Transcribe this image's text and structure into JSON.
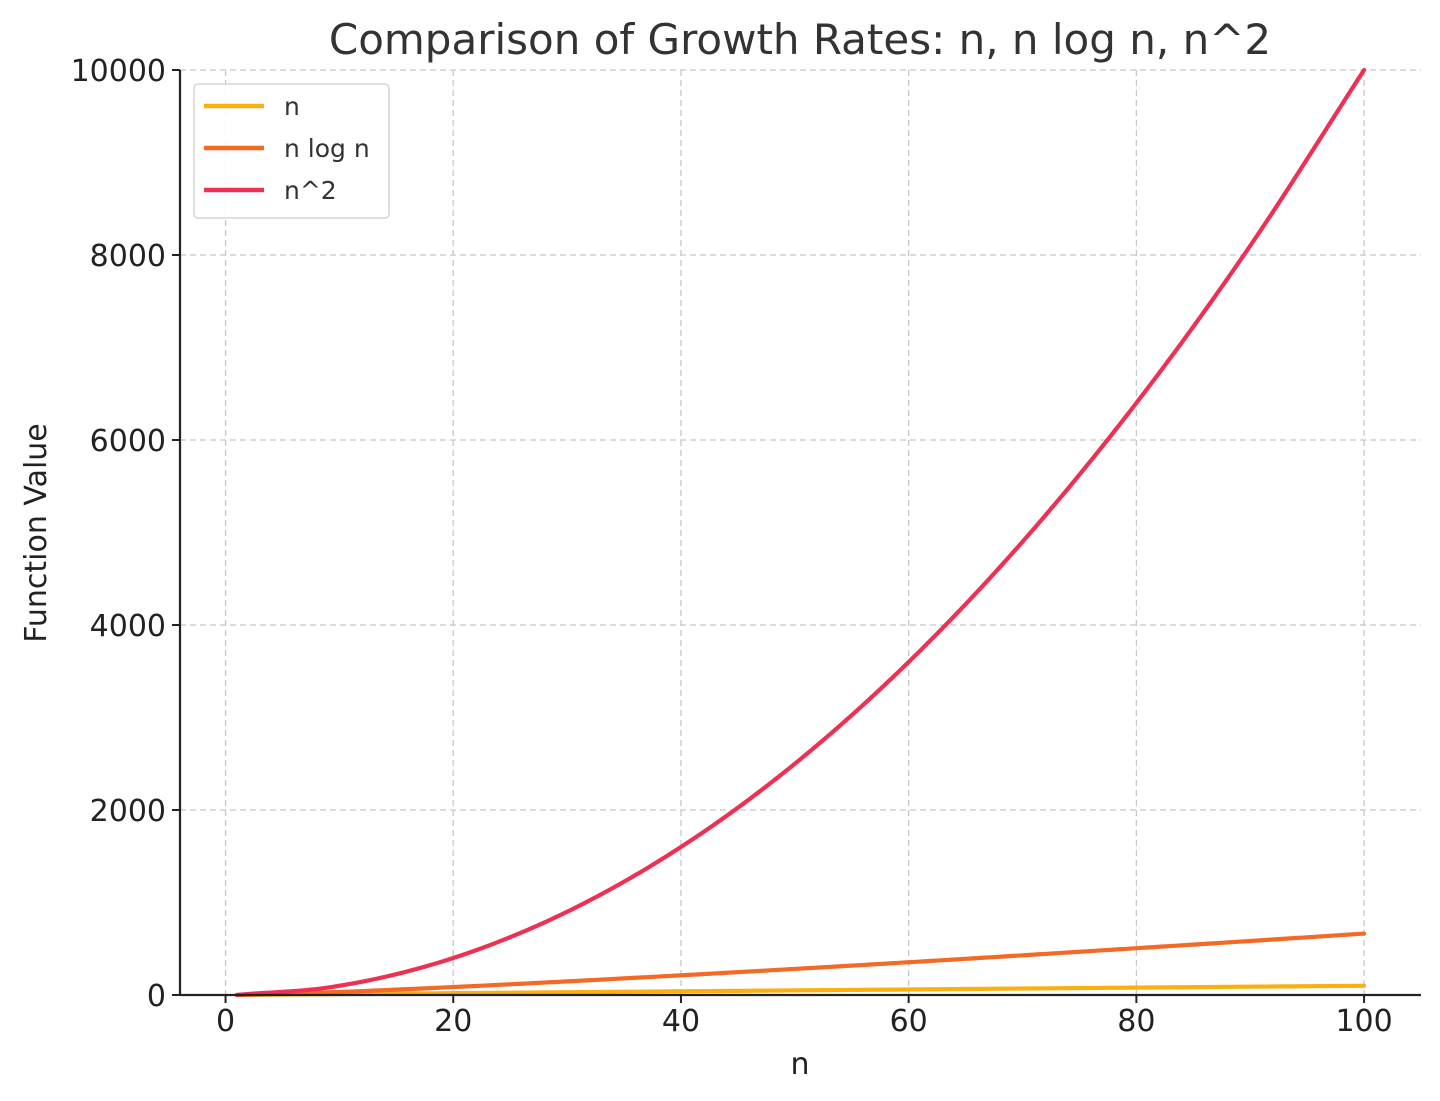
{
  "chart_data": {
    "type": "line",
    "title": "Comparison of Growth Rates: n, n log n, n^2",
    "xlabel": "n",
    "ylabel": "Function Value",
    "xlim": [
      -4,
      105
    ],
    "ylim": [
      0,
      10000
    ],
    "xticks": [
      0,
      20,
      40,
      60,
      80,
      100
    ],
    "yticks": [
      0,
      2000,
      4000,
      6000,
      8000,
      10000
    ],
    "grid": true,
    "legend_position": "top-left",
    "series": [
      {
        "name": "n",
        "color": "#FBB011",
        "x": [
          1,
          10,
          20,
          30,
          40,
          50,
          60,
          70,
          80,
          90,
          100
        ],
        "y": [
          1,
          10,
          20,
          30,
          40,
          50,
          60,
          70,
          80,
          90,
          100
        ]
      },
      {
        "name": "n log n",
        "color": "#F26A25",
        "x": [
          1,
          10,
          20,
          30,
          40,
          50,
          60,
          70,
          80,
          90,
          100
        ],
        "y": [
          0,
          33,
          86,
          147,
          213,
          282,
          354,
          429,
          506,
          584,
          664
        ]
      },
      {
        "name": "n^2",
        "color": "#EE3052",
        "x": [
          1,
          10,
          20,
          30,
          40,
          50,
          60,
          70,
          80,
          90,
          100
        ],
        "y": [
          1,
          100,
          400,
          900,
          1600,
          2500,
          3600,
          4900,
          6400,
          8100,
          10000
        ]
      }
    ]
  }
}
